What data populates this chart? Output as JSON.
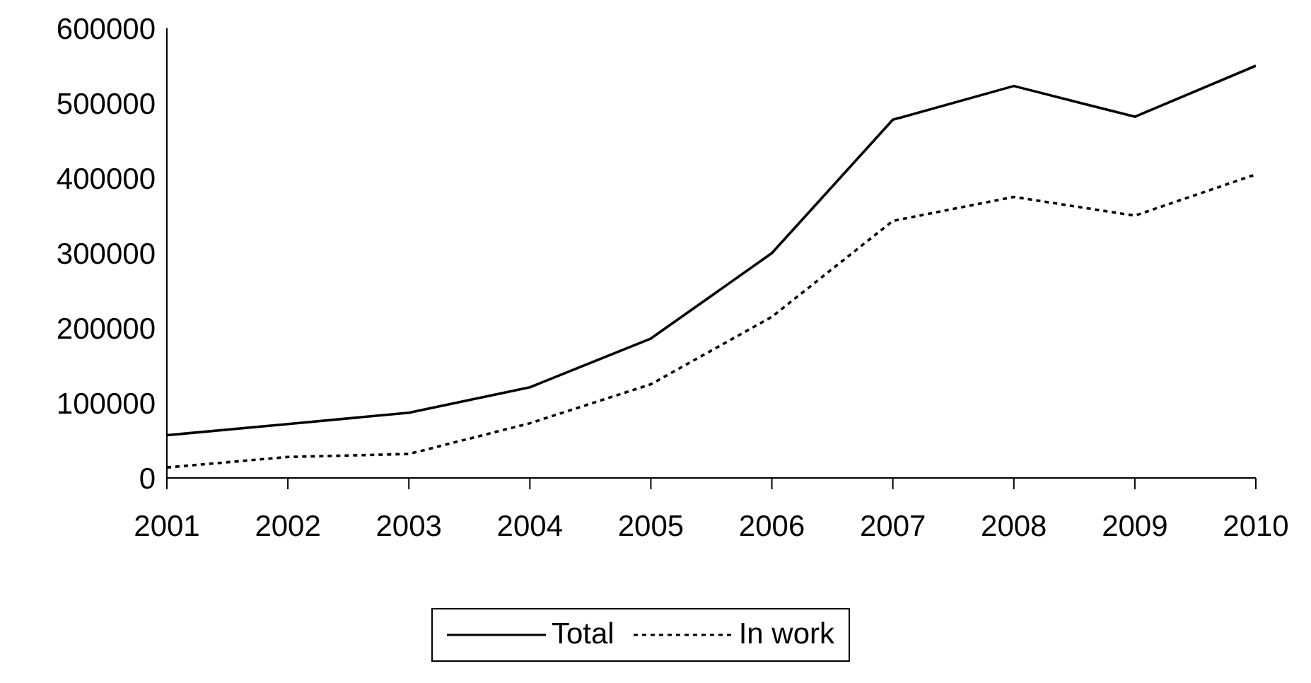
{
  "chart_data": {
    "type": "line",
    "x": [
      2001,
      2002,
      2003,
      2004,
      2005,
      2006,
      2007,
      2008,
      2009,
      2010
    ],
    "series": [
      {
        "name": "Total",
        "color": "#000000",
        "line_style": "solid",
        "values": [
          57000,
          72000,
          87000,
          121000,
          186000,
          300000,
          478000,
          523000,
          482000,
          550000
        ]
      },
      {
        "name": "In work",
        "color": "#000000",
        "line_style": "dotted",
        "values": [
          14000,
          28000,
          32000,
          73000,
          125000,
          215000,
          343000,
          375000,
          350000,
          405000
        ]
      }
    ],
    "xlim": [
      2001,
      2010
    ],
    "xticks": [
      2001,
      2002,
      2003,
      2004,
      2005,
      2006,
      2007,
      2008,
      2009,
      2010
    ],
    "ylim": [
      0,
      600000
    ],
    "yticks": [
      0,
      100000,
      200000,
      300000,
      400000,
      500000,
      600000
    ],
    "grid": false,
    "legend": "bottom",
    "marker": "none"
  }
}
